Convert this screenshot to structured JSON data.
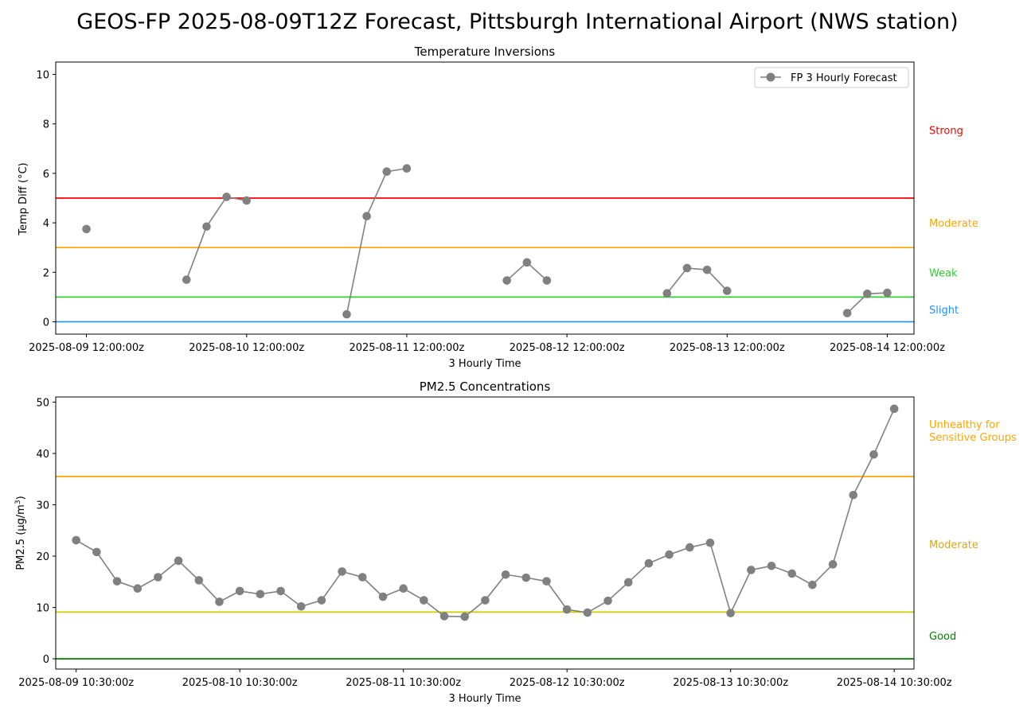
{
  "figure": {
    "title": "GEOS-FP 2025-08-09T12Z Forecast, Pittsburgh International Airport (NWS station)"
  },
  "chart_data": [
    {
      "type": "line",
      "title": "Temperature Inversions",
      "xlabel": "3 Hourly Time",
      "ylabel": "Temp Diff (°C)",
      "x_tick_labels": [
        "2025-08-09 12:00:00z",
        "2025-08-10 12:00:00z",
        "2025-08-11 12:00:00z",
        "2025-08-12 12:00:00z",
        "2025-08-13 12:00:00z",
        "2025-08-14 12:00:00z"
      ],
      "y_ticks": [
        0,
        2,
        4,
        6,
        8,
        10
      ],
      "ylim": [
        -0.5,
        10.5
      ],
      "x_start": "2025-08-09 12:00:00z",
      "x_interval_hours": 3,
      "x_domain_hours": [
        -4.6,
        124
      ],
      "legend": {
        "label": "FP 3 Hourly Forecast",
        "placement": "top-right"
      },
      "series": [
        {
          "name": "FP 3 Hourly Forecast",
          "color": "#808080",
          "values": [
            3.75,
            null,
            null,
            null,
            null,
            1.7,
            3.85,
            5.05,
            4.9,
            null,
            null,
            null,
            null,
            0.3,
            4.27,
            6.07,
            6.2,
            null,
            null,
            null,
            null,
            1.67,
            2.4,
            1.67,
            null,
            null,
            null,
            null,
            null,
            1.15,
            2.17,
            2.1,
            1.25,
            null,
            null,
            null,
            null,
            null,
            0.35,
            1.13,
            1.17
          ]
        }
      ],
      "thresholds": [
        {
          "value": 0,
          "color": "#1e90ff",
          "label": "Slight",
          "label_y": 0.5
        },
        {
          "value": 1,
          "color": "#32cd32",
          "label": "Weak",
          "label_y": 2
        },
        {
          "value": 3,
          "color": "#ffa500",
          "label": "Moderate",
          "label_y": 4
        },
        {
          "value": 5,
          "color": "#ff0000",
          "label": "Strong",
          "label_y": 7.75
        }
      ]
    },
    {
      "type": "line",
      "title": "PM2.5 Concentrations",
      "xlabel": "3 Hourly Time",
      "ylabel": "PM2.5 (µg/m3)",
      "x_tick_labels": [
        "2025-08-09 10:30:00z",
        "2025-08-10 10:30:00z",
        "2025-08-11 10:30:00z",
        "2025-08-12 10:30:00z",
        "2025-08-13 10:30:00z",
        "2025-08-14 10:30:00z"
      ],
      "y_ticks": [
        0,
        10,
        20,
        30,
        40,
        50
      ],
      "ylim": [
        -2,
        51
      ],
      "x_start": "2025-08-09 10:30:00z",
      "x_interval_hours": 3,
      "x_domain_hours": [
        -3,
        122.9
      ],
      "series": [
        {
          "name": "FP 3 Hourly Forecast",
          "color": "#808080",
          "values": [
            23.1,
            20.8,
            15.1,
            13.7,
            15.9,
            19.1,
            15.3,
            11.1,
            13.2,
            12.6,
            13.2,
            10.2,
            11.4,
            17.0,
            15.9,
            12.1,
            13.7,
            11.4,
            8.3,
            8.2,
            11.4,
            16.4,
            15.8,
            15.1,
            9.6,
            9.0,
            11.3,
            14.9,
            18.6,
            20.3,
            21.7,
            22.6,
            8.9,
            17.3,
            18.1,
            16.6,
            14.4,
            18.4,
            31.9,
            39.8,
            48.7
          ]
        }
      ],
      "thresholds": [
        {
          "value": 0,
          "color": "#008000",
          "label": "Good",
          "label_y": 4.5
        },
        {
          "value": 9.1,
          "color": "#cccc00",
          "label": "Moderate",
          "label_y": 22.3
        },
        {
          "value": 35.5,
          "color": "#ffa500",
          "label": "Unhealthy for\nSensitive Groups",
          "label_y": 44.5
        }
      ],
      "threshold_label_colors": {
        "Moderate": "#daa520"
      }
    }
  ]
}
